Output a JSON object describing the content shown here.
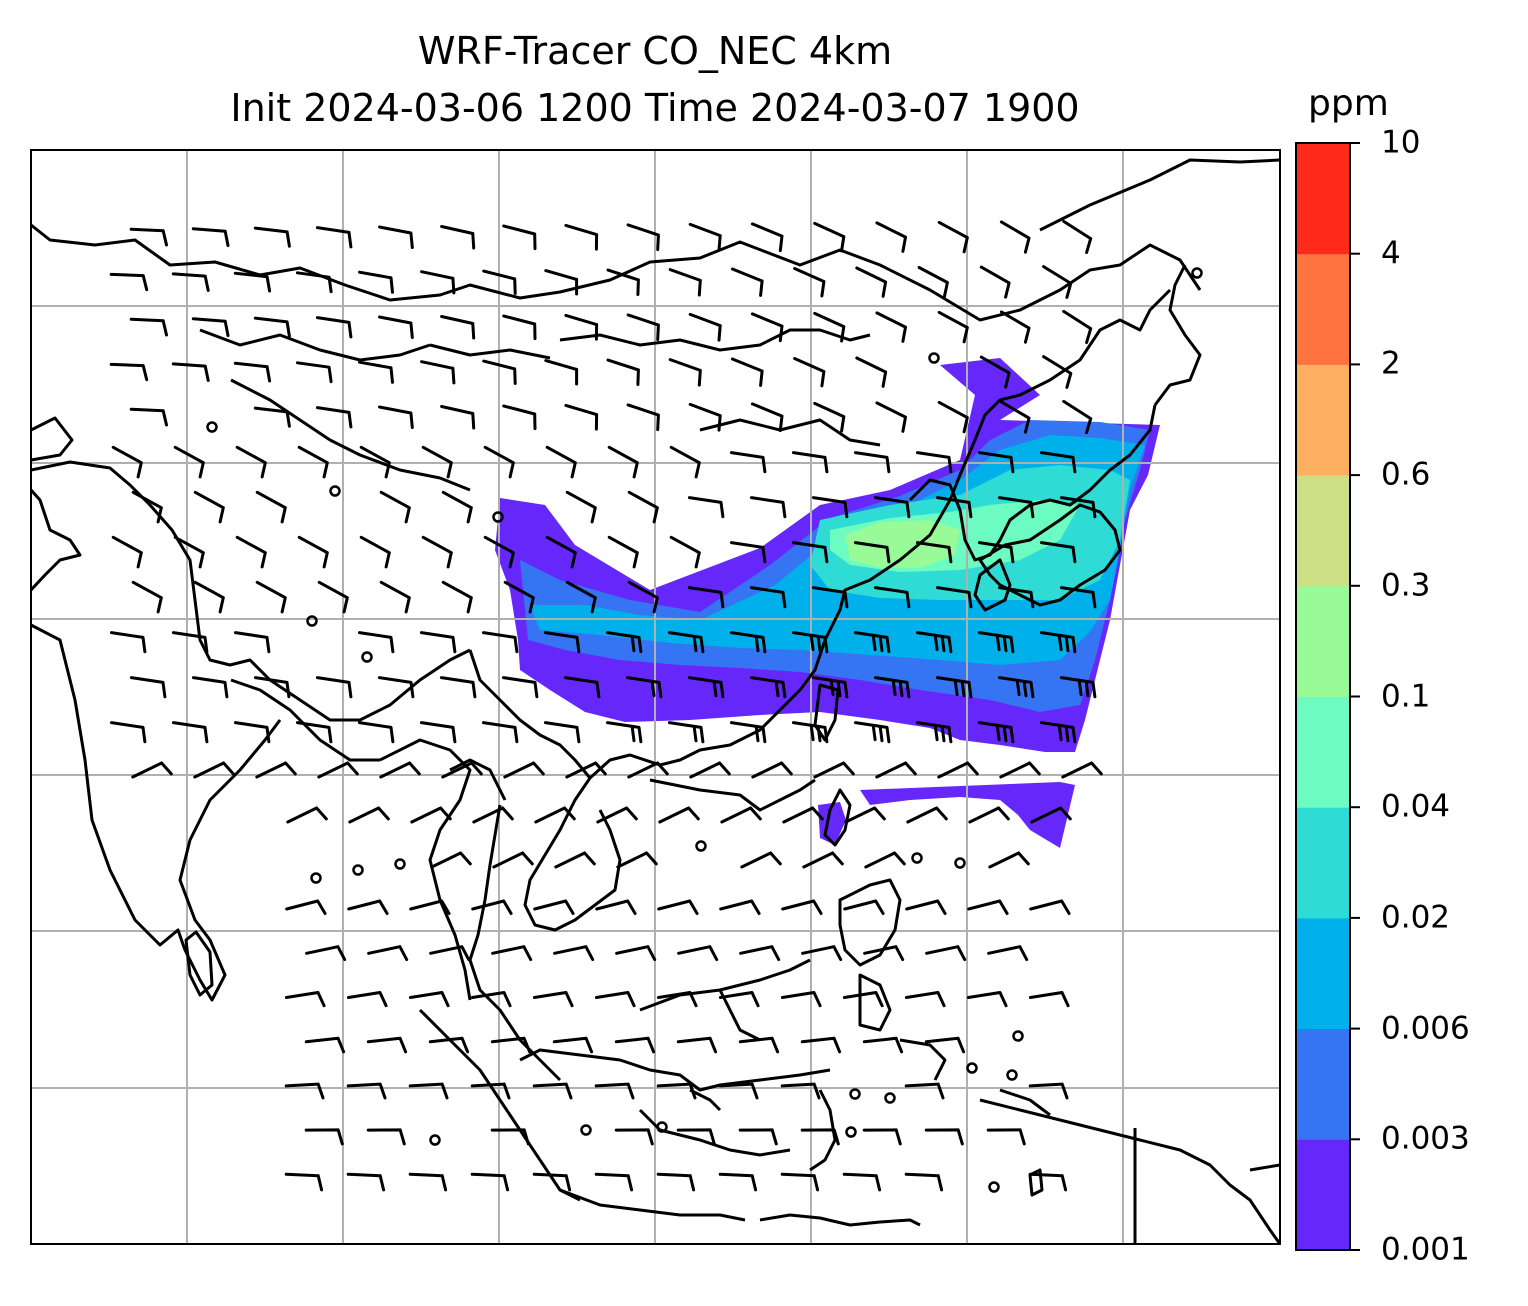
{
  "figure": {
    "title_line1": "WRF-Tracer CO_NEC 4km",
    "title_line2": "Init 2024-03-06 1200 Time 2024-03-07 1900"
  },
  "colorbar": {
    "unit": "ppm",
    "levels": [
      "0.001",
      "0.003",
      "0.006",
      "0.02",
      "0.04",
      "0.1",
      "0.3",
      "0.6",
      "2",
      "4",
      "10"
    ],
    "colors": [
      "#6628fa",
      "#3574f2",
      "#00b0ea",
      "#2fdcd5",
      "#6cfbc0",
      "#98fb98",
      "#cddf85",
      "#feb060",
      "#ff7340",
      "#ff2a1a"
    ]
  },
  "map": {
    "gridlines": true,
    "overlay": "wind barbs",
    "fields": "CO tracer concentration"
  }
}
